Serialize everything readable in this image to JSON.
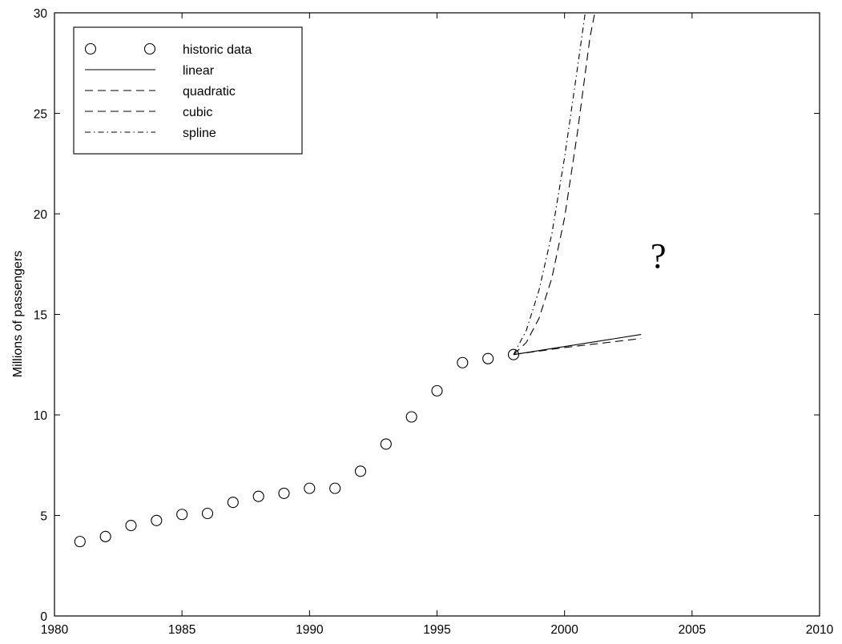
{
  "chart_data": {
    "type": "line",
    "title": "",
    "xlabel": "",
    "ylabel": "Millions of passengers",
    "xlim": [
      1980,
      2010
    ],
    "ylim": [
      0,
      30
    ],
    "xticks": [
      "1980",
      "1985",
      "1990",
      "1995",
      "2000",
      "2005",
      "2010"
    ],
    "yticks": [
      "0",
      "5",
      "10",
      "15",
      "20",
      "25",
      "30"
    ],
    "grid": false,
    "legend_position": "top-left",
    "annotation": "?",
    "series": [
      {
        "name": "historic data",
        "style": "markers-circle",
        "x": [
          1981,
          1982,
          1983,
          1984,
          1985,
          1986,
          1987,
          1988,
          1989,
          1990,
          1991,
          1992,
          1993,
          1994,
          1995,
          1996,
          1997,
          1998
        ],
        "y": [
          3.7,
          3.95,
          4.5,
          4.75,
          5.05,
          5.1,
          5.65,
          5.95,
          6.1,
          6.35,
          6.35,
          7.2,
          8.55,
          9.9,
          11.2,
          12.6,
          12.8,
          13.0
        ]
      },
      {
        "name": "linear",
        "style": "solid",
        "x": [
          1998,
          2003
        ],
        "y": [
          13.0,
          14.0
        ]
      },
      {
        "name": "quadratic",
        "style": "dashed",
        "x": [
          1998,
          2000,
          2003
        ],
        "y": [
          13.0,
          13.35,
          13.8
        ]
      },
      {
        "name": "cubic",
        "style": "dashed",
        "x": [
          1998,
          1998.5,
          1999,
          1999.5,
          2000,
          2000.5,
          2001,
          2001.5
        ],
        "y": [
          13.0,
          13.6,
          14.8,
          16.8,
          19.8,
          24.0,
          28.8,
          32.0
        ]
      },
      {
        "name": "spline",
        "style": "dashdot",
        "x": [
          1998,
          1998.5,
          1999,
          1999.5,
          2000,
          2000.5,
          2000.8,
          2001
        ],
        "y": [
          13.0,
          14.2,
          16.2,
          19.0,
          22.8,
          27.2,
          29.9,
          31.5
        ]
      }
    ]
  }
}
